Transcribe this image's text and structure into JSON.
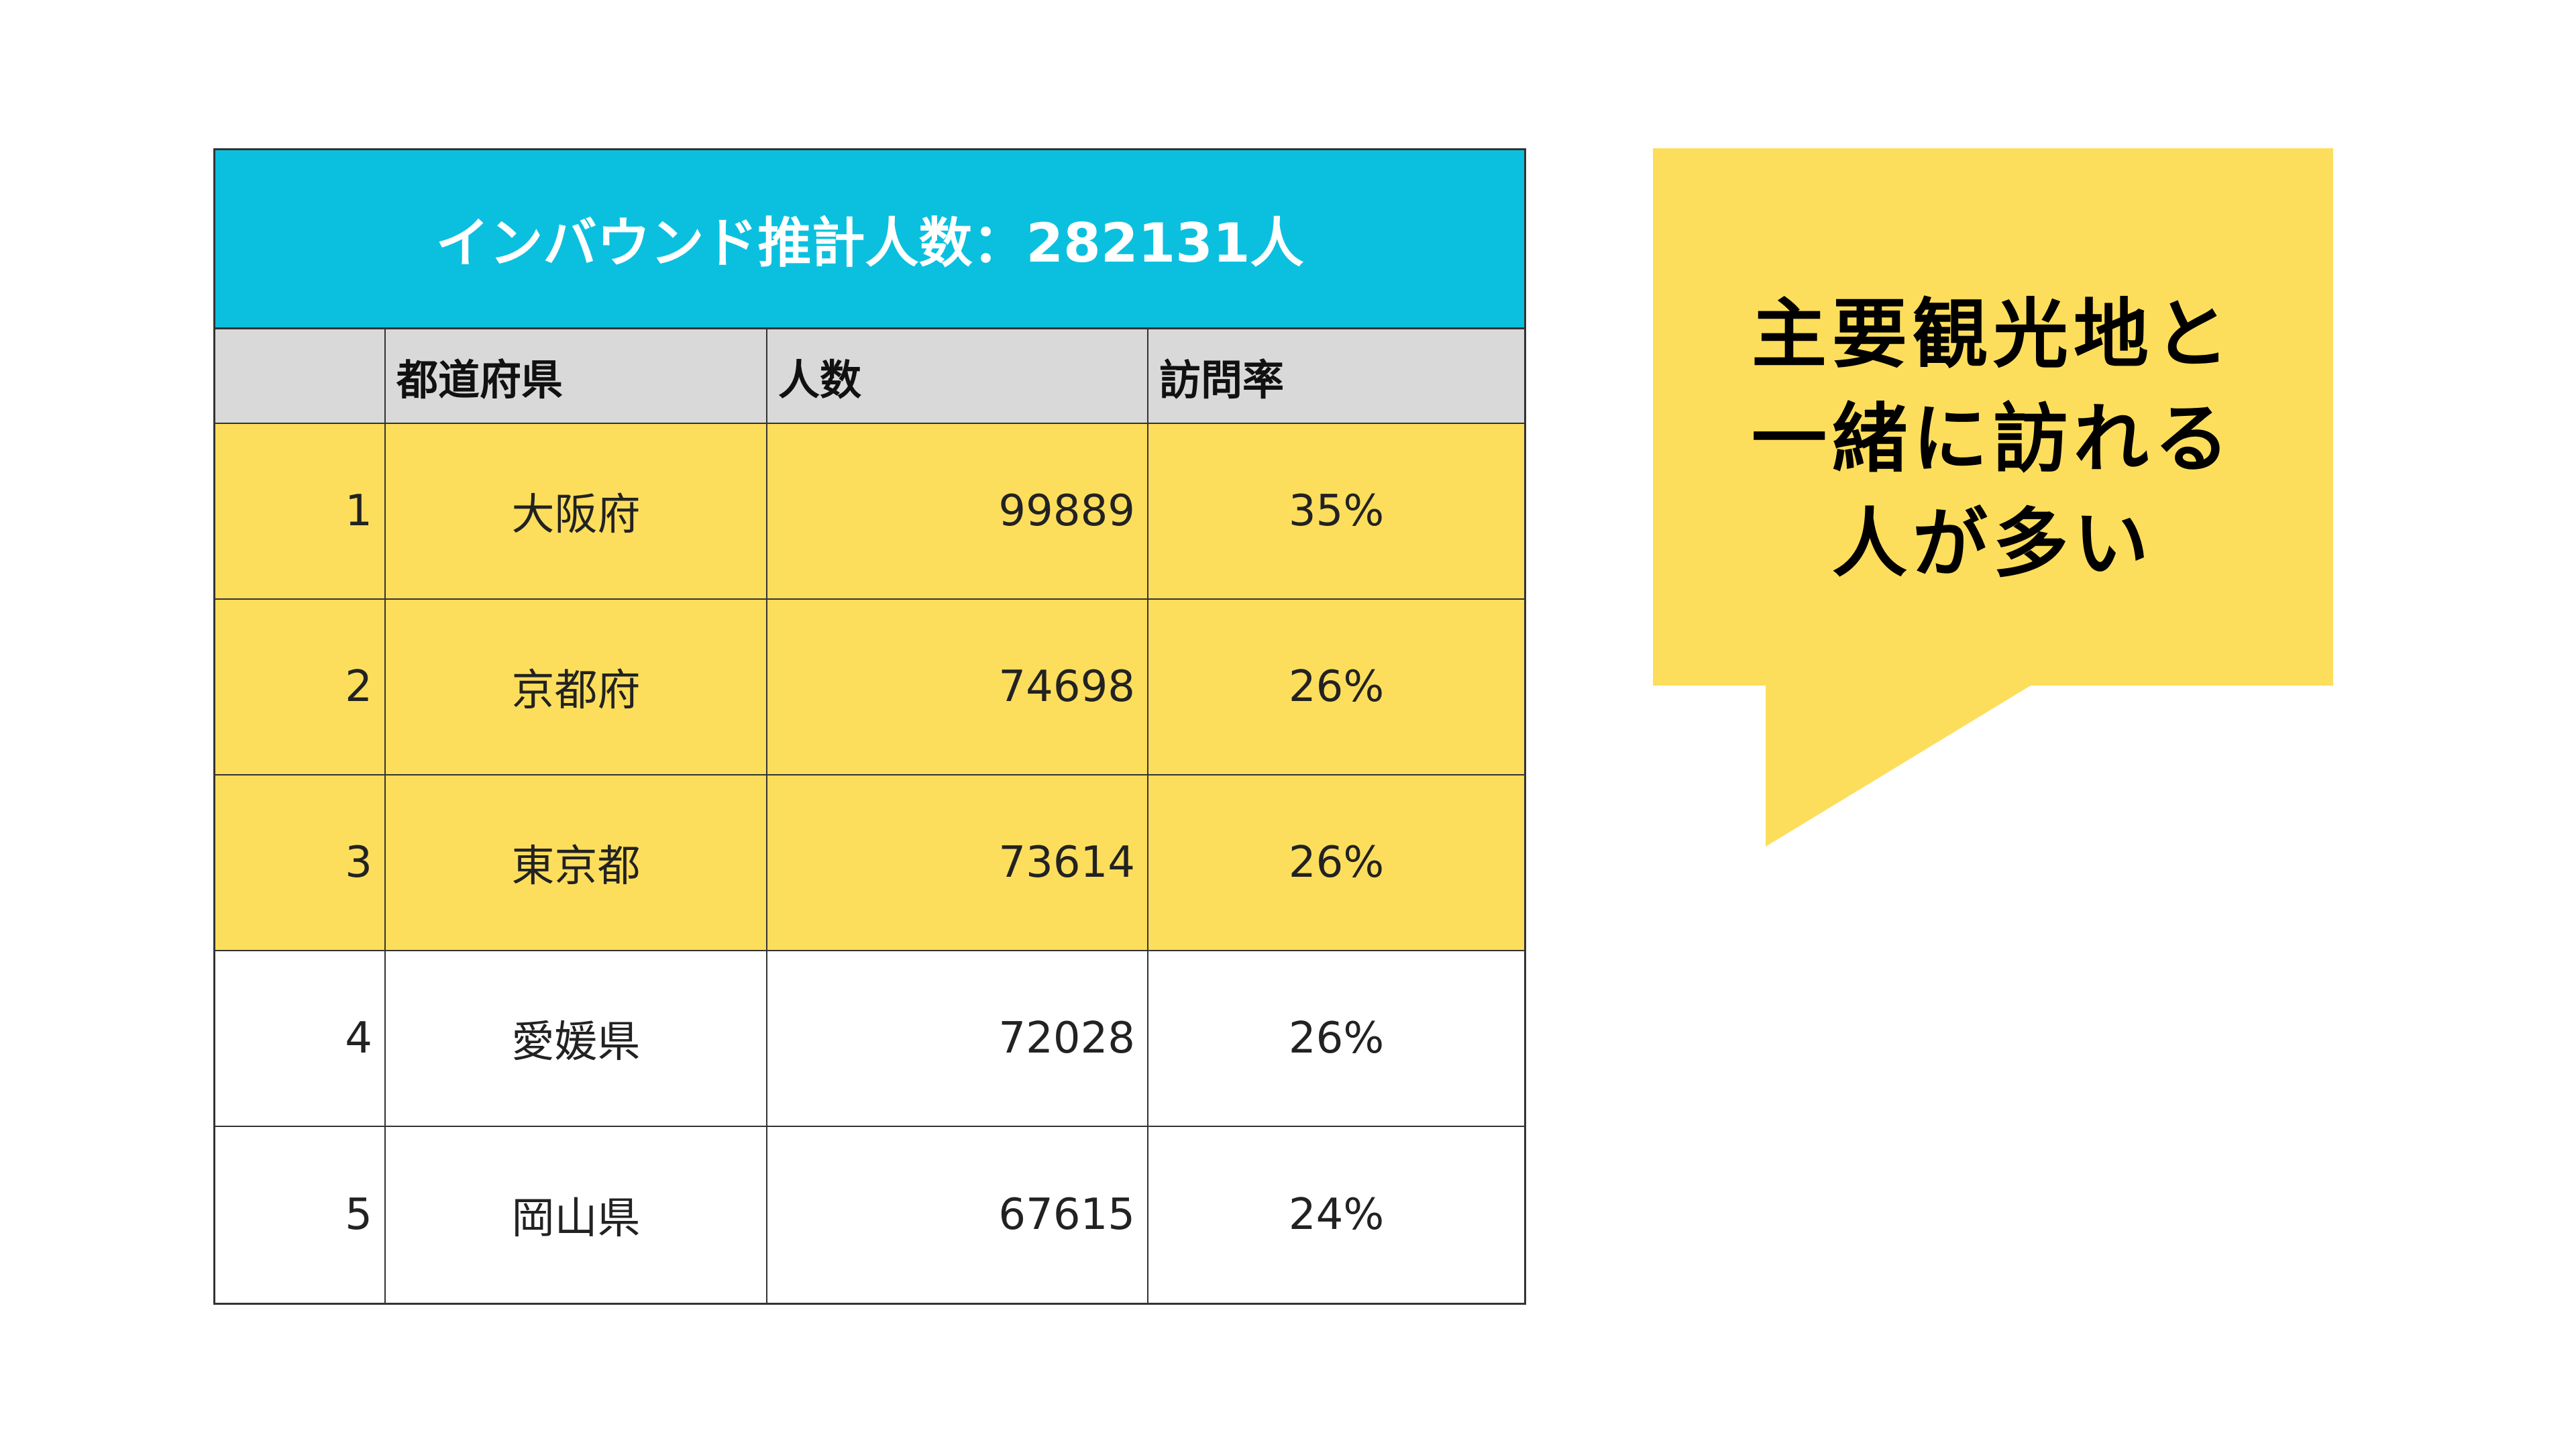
{
  "table": {
    "title": "インバウンド推計人数：282131人",
    "headers": [
      "",
      "都道府県",
      "人数",
      "訪問率"
    ],
    "rows": [
      {
        "rank": "1",
        "prefecture": "大阪府",
        "count": "99889",
        "rate": "35%",
        "highlighted": true
      },
      {
        "rank": "2",
        "prefecture": "京都府",
        "count": "74698",
        "rate": "26%",
        "highlighted": true
      },
      {
        "rank": "3",
        "prefecture": "東京都",
        "count": "73614",
        "rate": "26%",
        "highlighted": true
      },
      {
        "rank": "4",
        "prefecture": "愛媛県",
        "count": "72028",
        "rate": "26%",
        "highlighted": false
      },
      {
        "rank": "5",
        "prefecture": "岡山県",
        "count": "67615",
        "rate": "24%",
        "highlighted": false
      }
    ]
  },
  "callout": {
    "lines": [
      "主要観光地と",
      "一緒に訪れる",
      "人が多い"
    ]
  },
  "colors": {
    "title_bg": "#0BC0DF",
    "header_bg": "#D9D9D9",
    "highlight": "#FDDE5C"
  }
}
